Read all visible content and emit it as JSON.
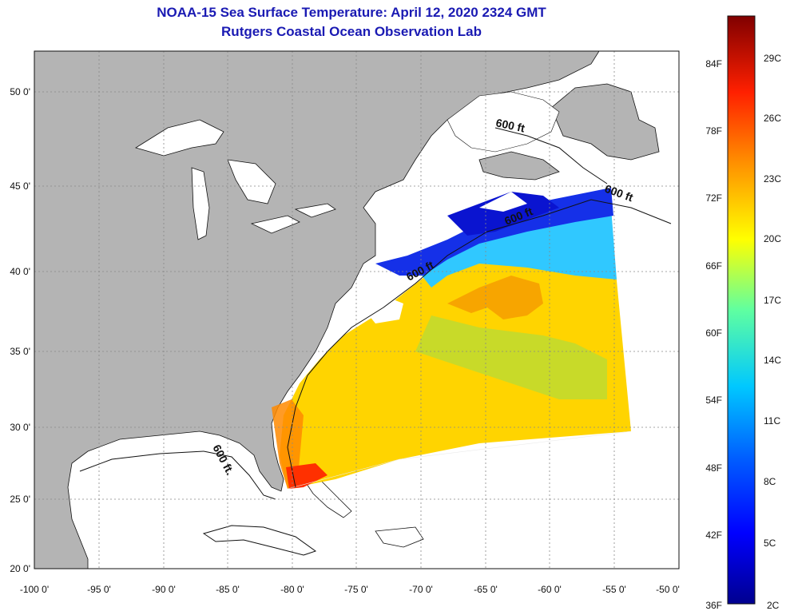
{
  "title": {
    "line1": "NOAA-15 Sea Surface Temperature:  April 12, 2020 2324 GMT",
    "line2": "Rutgers Coastal Ocean Observation Lab"
  },
  "map": {
    "lat_ticks": [
      "50 0'",
      "45 0'",
      "40 0'",
      "35 0'",
      "30 0'",
      "25 0'",
      "20 0'"
    ],
    "lon_ticks": [
      "-100 0'",
      "-95 0'",
      "-90 0'",
      "-85 0'",
      "-80 0'",
      "-75 0'",
      "-70 0'",
      "-65 0'",
      "-60 0'",
      "-55 0'",
      "-50 0'"
    ],
    "isobath_labels": [
      "600 ft",
      "600 ft",
      "600 ft",
      "600 ft",
      "600 ft."
    ],
    "colors": {
      "land": "#b4b4b4",
      "ocean": "#ffffff"
    }
  },
  "colorbar": {
    "f_labels": [
      "84F",
      "78F",
      "72F",
      "66F",
      "60F",
      "54F",
      "48F",
      "42F",
      "36F"
    ],
    "c_labels": [
      "29C",
      "26C",
      "23C",
      "20C",
      "17C",
      "14C",
      "11C",
      "8C",
      "5C",
      "2C"
    ]
  }
}
